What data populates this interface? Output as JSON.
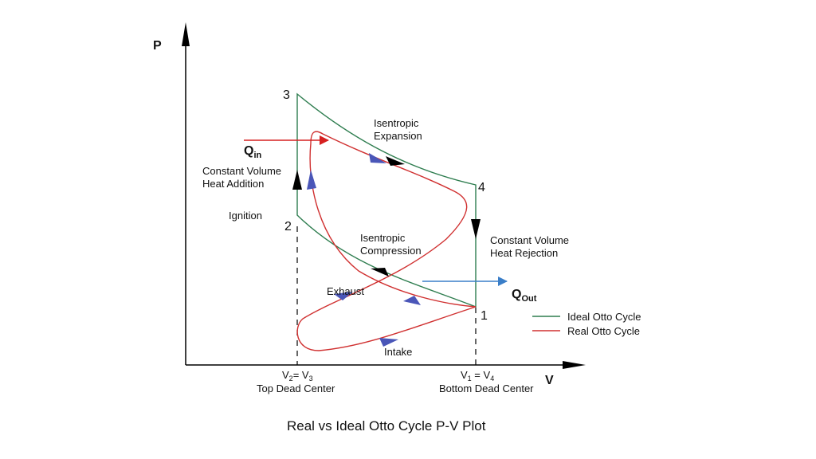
{
  "axes": {
    "y_label": "P",
    "x_label": "V"
  },
  "points": {
    "p1": "1",
    "p2": "2",
    "p3": "3",
    "p4": "4"
  },
  "labels": {
    "isentropic_expansion": [
      "Isentropic",
      "Expansion"
    ],
    "isentropic_compression": [
      "Isentropic",
      "Compression"
    ],
    "const_vol_heat_addition": [
      "Constant Volume",
      "Heat Addition"
    ],
    "const_vol_heat_rejection": [
      "Constant Volume",
      "Heat Rejection"
    ],
    "ignition": "Ignition",
    "exhaust": "Exhaust",
    "intake": "Intake",
    "q_in_main": "Q",
    "q_in_sub": "in",
    "q_out_main": "Q",
    "q_out_sub": "Out"
  },
  "tdc": {
    "v2": "V",
    "v2_sub": "2",
    "eq": "= V",
    "v3_sub": "3",
    "name": "Top Dead Center"
  },
  "bdc": {
    "v1": "V",
    "v1_sub": "1",
    "eq": " = V",
    "v4_sub": "4",
    "name": "Bottom Dead Center"
  },
  "legend": [
    {
      "label": "Ideal Otto Cycle",
      "color": "#2e7d4f"
    },
    {
      "label": "Real Otto Cycle",
      "color": "#d03030"
    }
  ],
  "colors": {
    "ideal": "#2e7d4f",
    "real": "#d03030",
    "heat_arrow_in": "#d62020",
    "heat_arrow_out": "#3a7ec8",
    "flow_arrow": "#4a56b8"
  },
  "caption": "Real vs Ideal Otto Cycle P-V Plot"
}
